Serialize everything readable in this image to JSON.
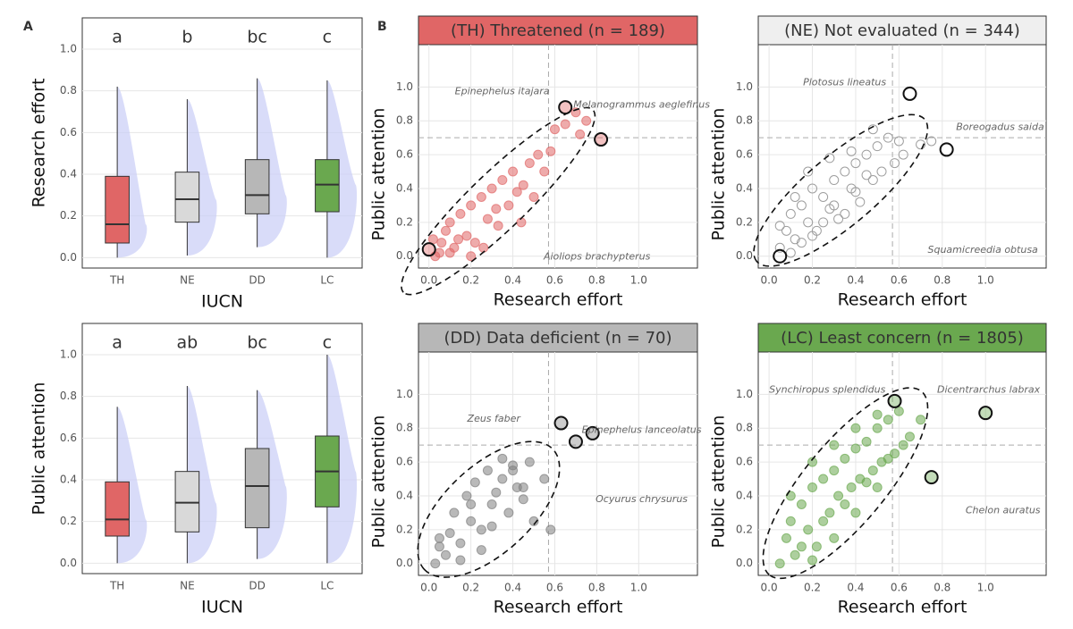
{
  "chart_data": [
    {
      "type": "box",
      "panel_label": "A",
      "ylabel": "Research effort",
      "xlabel": "IUCN",
      "categories": [
        "TH",
        "NE",
        "DD",
        "LC"
      ],
      "colors": [
        "#e06666",
        "#d9d9d9",
        "#b7b7b7",
        "#6aa84f"
      ],
      "whisker_low": [
        0,
        0.01,
        0.05,
        0
      ],
      "q1": [
        0.07,
        0.17,
        0.21,
        0.22
      ],
      "median": [
        0.16,
        0.28,
        0.3,
        0.35
      ],
      "q3": [
        0.39,
        0.41,
        0.47,
        0.47
      ],
      "whisker_high": [
        0.82,
        0.76,
        0.86,
        0.85
      ],
      "letters": [
        "a",
        "b",
        "bc",
        "c"
      ],
      "ylim": [
        -0.05,
        1.15
      ],
      "yticks": [
        {
          "value": 0,
          "label": "0.0"
        },
        0.2,
        0.4,
        0.6,
        0.8,
        {
          "value": 1,
          "label": "1.0"
        }
      ],
      "grid": true
    },
    {
      "type": "box",
      "ylabel": "Public attention",
      "xlabel": "IUCN",
      "categories": [
        "TH",
        "NE",
        "DD",
        "LC"
      ],
      "colors": [
        "#e06666",
        "#d9d9d9",
        "#b7b7b7",
        "#6aa84f"
      ],
      "whisker_low": [
        0,
        0,
        0.02,
        0
      ],
      "q1": [
        0.13,
        0.15,
        0.17,
        0.27
      ],
      "median": [
        0.21,
        0.29,
        0.37,
        0.44
      ],
      "q3": [
        0.39,
        0.44,
        0.55,
        0.61
      ],
      "whisker_high": [
        0.75,
        0.85,
        0.83,
        1.0
      ],
      "letters": [
        "a",
        "ab",
        "bc",
        "c"
      ],
      "ylim": [
        -0.05,
        1.15
      ],
      "yticks": [
        {
          "value": 0,
          "label": "0.0"
        },
        0.2,
        0.4,
        0.6,
        0.8,
        {
          "value": 1,
          "label": "1.0"
        }
      ],
      "grid": true
    },
    {
      "type": "scatter",
      "panel_label": "B",
      "title": "(TH) Threatened (n = 189)",
      "strip_color": "#e06666",
      "color": "#e06666",
      "marker": "filled",
      "xlabel": "Research effort",
      "ylabel": "Public attention",
      "x": [
        0.02,
        0.05,
        0.08,
        0.1,
        0.12,
        0.15,
        0.18,
        0.2,
        0.22,
        0.25,
        0.28,
        0.3,
        0.33,
        0.35,
        0.38,
        0.4,
        0.42,
        0.45,
        0.48,
        0.5,
        0.52,
        0.55,
        0.58,
        0.6,
        0.65,
        0.7,
        0.72,
        0.75,
        0.03,
        0.06,
        0.1,
        0.14,
        0.2,
        0.26,
        0.32,
        0.44
      ],
      "y": [
        0.1,
        0.02,
        0.15,
        0.2,
        0.05,
        0.25,
        0.12,
        0.3,
        0.08,
        0.35,
        0.22,
        0.4,
        0.18,
        0.45,
        0.3,
        0.5,
        0.38,
        0.42,
        0.55,
        0.35,
        0.6,
        0.5,
        0.62,
        0.75,
        0.78,
        0.85,
        0.72,
        0.8,
        0.0,
        0.08,
        0.02,
        0.1,
        0.0,
        0.05,
        0.28,
        0.2
      ],
      "highlight_x": [
        0,
        0.65,
        0.82
      ],
      "highlight_y": [
        0.04,
        0.88,
        0.69
      ],
      "ref_x": 0.57,
      "ref_y": 0.7,
      "species": [
        "Epinephelus itajara",
        "Melanogrammus aeglefinus",
        "Aioliops brachypterus"
      ],
      "xlim": [
        -0.05,
        1.28
      ],
      "ylim": [
        -0.07,
        1.25
      ],
      "xticks": [
        {
          "value": 0,
          "label": "0.0"
        },
        0.2,
        0.4,
        0.6,
        0.8,
        {
          "value": 1,
          "label": "1.0"
        }
      ],
      "yticks": [
        {
          "value": 0,
          "label": "0.0"
        },
        0.2,
        0.4,
        0.6,
        0.8,
        {
          "value": 1,
          "label": "1.0"
        }
      ],
      "grid": true
    },
    {
      "type": "scatter",
      "title": "(NE) Not evaluated (n = 344)",
      "strip_color": "#efefef",
      "color": "#9e9e9e",
      "marker": "hollow",
      "xlabel": "Research effort",
      "ylabel": "Public attention",
      "x": [
        0.05,
        0.08,
        0.1,
        0.12,
        0.15,
        0.18,
        0.2,
        0.22,
        0.25,
        0.28,
        0.3,
        0.32,
        0.35,
        0.38,
        0.4,
        0.42,
        0.45,
        0.48,
        0.5,
        0.52,
        0.55,
        0.58,
        0.6,
        0.62,
        0.1,
        0.15,
        0.2,
        0.25,
        0.3,
        0.35,
        0.4,
        0.45,
        0.05,
        0.12,
        0.18,
        0.28,
        0.38,
        0.48,
        0.7,
        0.75
      ],
      "y": [
        0.05,
        0.15,
        0.25,
        0.1,
        0.3,
        0.2,
        0.4,
        0.15,
        0.35,
        0.28,
        0.45,
        0.22,
        0.5,
        0.4,
        0.55,
        0.32,
        0.6,
        0.45,
        0.65,
        0.5,
        0.7,
        0.55,
        0.68,
        0.6,
        0.02,
        0.08,
        0.12,
        0.2,
        0.3,
        0.25,
        0.38,
        0.48,
        0.18,
        0.35,
        0.5,
        0.58,
        0.62,
        0.75,
        0.66,
        0.68
      ],
      "highlight_x": [
        0.05,
        0.65,
        0.82
      ],
      "highlight_y": [
        0,
        0.96,
        0.63
      ],
      "ref_x": 0.57,
      "ref_y": 0.7,
      "species": [
        "Plotosus lineatus",
        "Boreogadus saida",
        "Squamicreedia obtusa"
      ],
      "xlim": [
        -0.05,
        1.28
      ],
      "ylim": [
        -0.07,
        1.25
      ],
      "xticks": [
        {
          "value": 0,
          "label": "0.0"
        },
        0.2,
        0.4,
        0.6,
        0.8,
        {
          "value": 1,
          "label": "1.0"
        }
      ],
      "yticks": [
        {
          "value": 0,
          "label": "0.0"
        },
        0.2,
        0.4,
        0.6,
        0.8,
        {
          "value": 1,
          "label": "1.0"
        }
      ],
      "grid": true
    },
    {
      "type": "scatter",
      "title": "(DD) Data deficient (n = 70)",
      "strip_color": "#b7b7b7",
      "color": "#7f7f7f",
      "marker": "filled",
      "xlabel": "Research effort",
      "ylabel": "Public attention",
      "x": [
        0.03,
        0.05,
        0.08,
        0.1,
        0.12,
        0.15,
        0.18,
        0.2,
        0.22,
        0.25,
        0.28,
        0.3,
        0.32,
        0.35,
        0.38,
        0.4,
        0.42,
        0.45,
        0.48,
        0.5,
        0.55,
        0.58,
        0.15,
        0.25,
        0.35,
        0.45,
        0.05,
        0.2,
        0.3,
        0.4
      ],
      "y": [
        0.0,
        0.1,
        0.05,
        0.18,
        0.3,
        0.12,
        0.4,
        0.25,
        0.48,
        0.2,
        0.55,
        0.35,
        0.42,
        0.5,
        0.3,
        0.58,
        0.45,
        0.38,
        0.6,
        0.25,
        0.5,
        0.2,
        0.02,
        0.08,
        0.62,
        0.45,
        0.15,
        0.35,
        0.22,
        0.55
      ],
      "highlight_x": [
        0.63,
        0.7,
        0.78
      ],
      "highlight_y": [
        0.83,
        0.72,
        0.77
      ],
      "ref_x": 0.57,
      "ref_y": 0.7,
      "species": [
        "Zeus faber",
        "Epinephelus lanceolatus",
        "Ocyurus chrysurus"
      ],
      "xlim": [
        -0.05,
        1.28
      ],
      "ylim": [
        -0.07,
        1.25
      ],
      "xticks": [
        {
          "value": 0,
          "label": "0.0"
        },
        0.2,
        0.4,
        0.6,
        0.8,
        {
          "value": 1,
          "label": "1.0"
        }
      ],
      "yticks": [
        {
          "value": 0,
          "label": "0.0"
        },
        0.2,
        0.4,
        0.6,
        0.8,
        {
          "value": 1,
          "label": "1.0"
        }
      ],
      "grid": true
    },
    {
      "type": "scatter",
      "title": "(LC) Least concern (n = 1805)",
      "strip_color": "#6aa84f",
      "color": "#6aa84f",
      "marker": "filled",
      "xlabel": "Research effort",
      "ylabel": "Public attention",
      "x": [
        0.05,
        0.08,
        0.1,
        0.12,
        0.15,
        0.18,
        0.2,
        0.22,
        0.25,
        0.28,
        0.3,
        0.32,
        0.35,
        0.38,
        0.4,
        0.42,
        0.45,
        0.48,
        0.5,
        0.52,
        0.55,
        0.58,
        0.6,
        0.62,
        0.65,
        0.1,
        0.15,
        0.2,
        0.25,
        0.3,
        0.35,
        0.4,
        0.45,
        0.5,
        0.55,
        0.2,
        0.3,
        0.4,
        0.5,
        0.7
      ],
      "y": [
        0.0,
        0.15,
        0.25,
        0.05,
        0.35,
        0.2,
        0.45,
        0.1,
        0.5,
        0.3,
        0.55,
        0.4,
        0.62,
        0.45,
        0.68,
        0.5,
        0.72,
        0.55,
        0.8,
        0.6,
        0.85,
        0.65,
        0.9,
        0.7,
        0.75,
        0.4,
        0.1,
        0.6,
        0.25,
        0.7,
        0.35,
        0.8,
        0.48,
        0.88,
        0.62,
        0.02,
        0.15,
        0.3,
        0.45,
        0.85
      ],
      "highlight_x": [
        0.58,
        1.0,
        0.75
      ],
      "highlight_y": [
        0.96,
        0.89,
        0.51
      ],
      "ref_x": 0.57,
      "ref_y": 0.7,
      "species": [
        "Synchiropus splendidus",
        "Dicentrarchus labrax",
        "Chelon auratus"
      ],
      "xlim": [
        -0.05,
        1.28
      ],
      "ylim": [
        -0.07,
        1.25
      ],
      "xticks": [
        {
          "value": 0,
          "label": "0.0"
        },
        0.2,
        0.4,
        0.6,
        0.8,
        {
          "value": 1,
          "label": "1.0"
        }
      ],
      "yticks": [
        {
          "value": 0,
          "label": "0.0"
        },
        0.2,
        0.4,
        0.6,
        0.8,
        {
          "value": 1,
          "label": "1.0"
        }
      ],
      "grid": true
    }
  ]
}
